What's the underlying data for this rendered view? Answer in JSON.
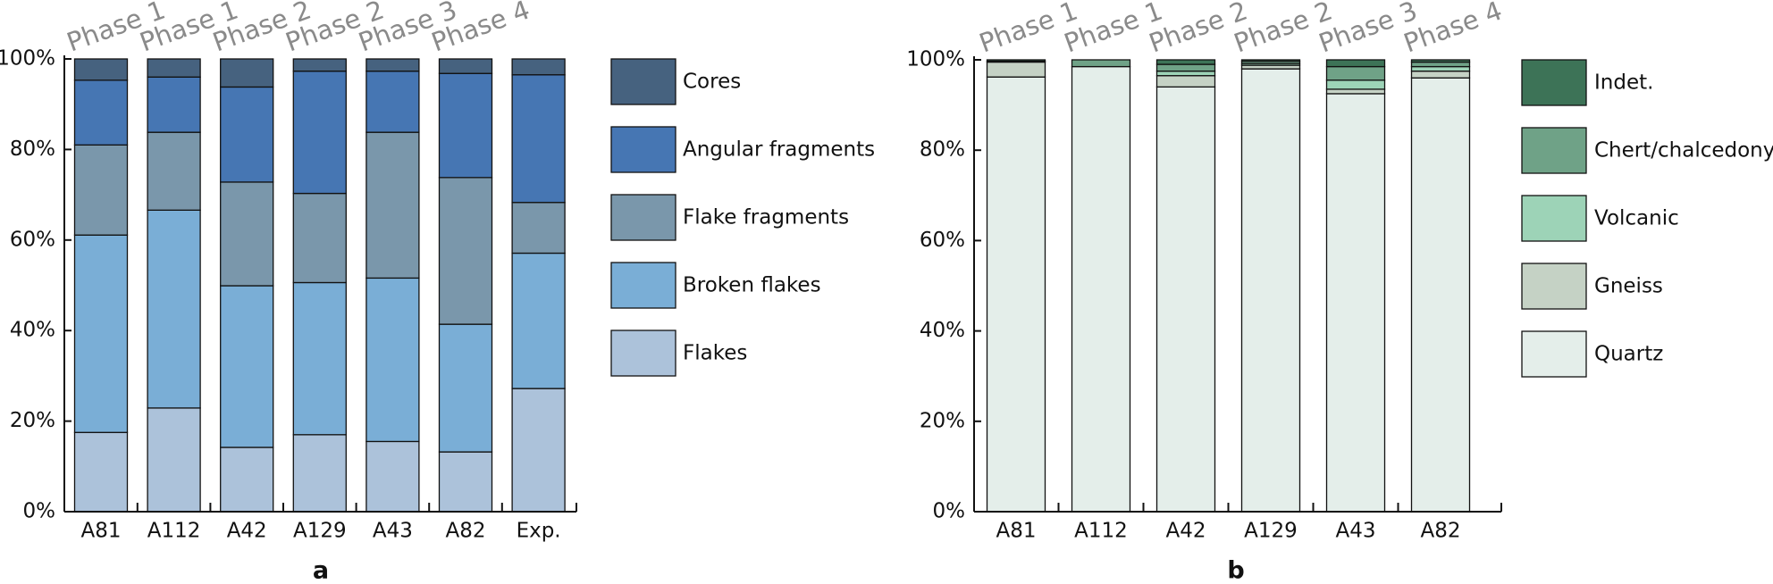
{
  "chart_data": [
    {
      "type": "bar",
      "stacked": true,
      "panel_label": "a",
      "categories": [
        "A81",
        "A112",
        "A42",
        "A129",
        "A43",
        "A82",
        "Exp."
      ],
      "phases": [
        "Phase 1",
        "Phase 1",
        "Phase 2",
        "Phase 2",
        "Phase 3",
        "Phase 4",
        null
      ],
      "series": [
        {
          "name": "Flakes",
          "color": "#acc2da",
          "values": [
            17.5,
            22.9,
            14.2,
            17.0,
            15.5,
            13.2,
            27.2
          ]
        },
        {
          "name": "Broken flakes",
          "color": "#7aaed6",
          "values": [
            43.6,
            43.7,
            35.7,
            33.6,
            36.1,
            28.2,
            29.9
          ]
        },
        {
          "name": "Flake fragments",
          "color": "#7a97ab",
          "values": [
            19.9,
            17.2,
            22.9,
            19.7,
            32.2,
            32.4,
            11.2
          ]
        },
        {
          "name": "Angular fragments",
          "color": "#4676b3",
          "values": [
            14.3,
            12.2,
            21.0,
            27.0,
            13.5,
            23.0,
            28.2
          ]
        },
        {
          "name": "Cores",
          "color": "#46627f",
          "values": [
            4.7,
            4.0,
            6.2,
            2.7,
            2.7,
            3.2,
            3.5
          ]
        }
      ],
      "ylim": [
        0,
        100
      ],
      "yticks": [
        {
          "value": 0,
          "label": "0%"
        },
        {
          "value": 20,
          "label": "20%"
        },
        {
          "value": 40,
          "label": "40%"
        },
        {
          "value": 60,
          "label": "60%"
        },
        {
          "value": 80,
          "label": "80%"
        },
        {
          "value": 100,
          "label": "100%"
        }
      ]
    },
    {
      "type": "bar",
      "stacked": true,
      "panel_label": "b",
      "categories": [
        "A81",
        "A112",
        "A42",
        "A129",
        "A43",
        "A82"
      ],
      "phases": [
        "Phase 1",
        "Phase 1",
        "Phase 2",
        "Phase 2",
        "Phase 3",
        "Phase 4"
      ],
      "series": [
        {
          "name": "Quartz",
          "color": "#e4eeea",
          "values": [
            96.2,
            98.5,
            94.0,
            98.0,
            92.5,
            96.0
          ]
        },
        {
          "name": "Gneiss",
          "color": "#c5d2c5",
          "values": [
            3.3,
            0,
            2.5,
            0.8,
            1.0,
            1.5
          ]
        },
        {
          "name": "Volcanic",
          "color": "#9dd3b7",
          "values": [
            0,
            0,
            1.0,
            0.4,
            2.0,
            1.0
          ]
        },
        {
          "name": "Chert/chalcedony",
          "color": "#6fa287",
          "values": [
            0.2,
            1.5,
            1.5,
            0.5,
            3.0,
            1.0
          ]
        },
        {
          "name": "Indet.",
          "color": "#3d7357",
          "values": [
            0.3,
            0,
            1.0,
            0.3,
            1.5,
            0.5
          ]
        }
      ],
      "ylim": [
        0,
        100
      ],
      "yticks": [
        {
          "value": 0,
          "label": "0%"
        },
        {
          "value": 20,
          "label": "20%"
        },
        {
          "value": 40,
          "label": "40%"
        },
        {
          "value": 60,
          "label": "60%"
        },
        {
          "value": 80,
          "label": "80%"
        },
        {
          "value": 100,
          "label": "100%"
        }
      ]
    }
  ]
}
